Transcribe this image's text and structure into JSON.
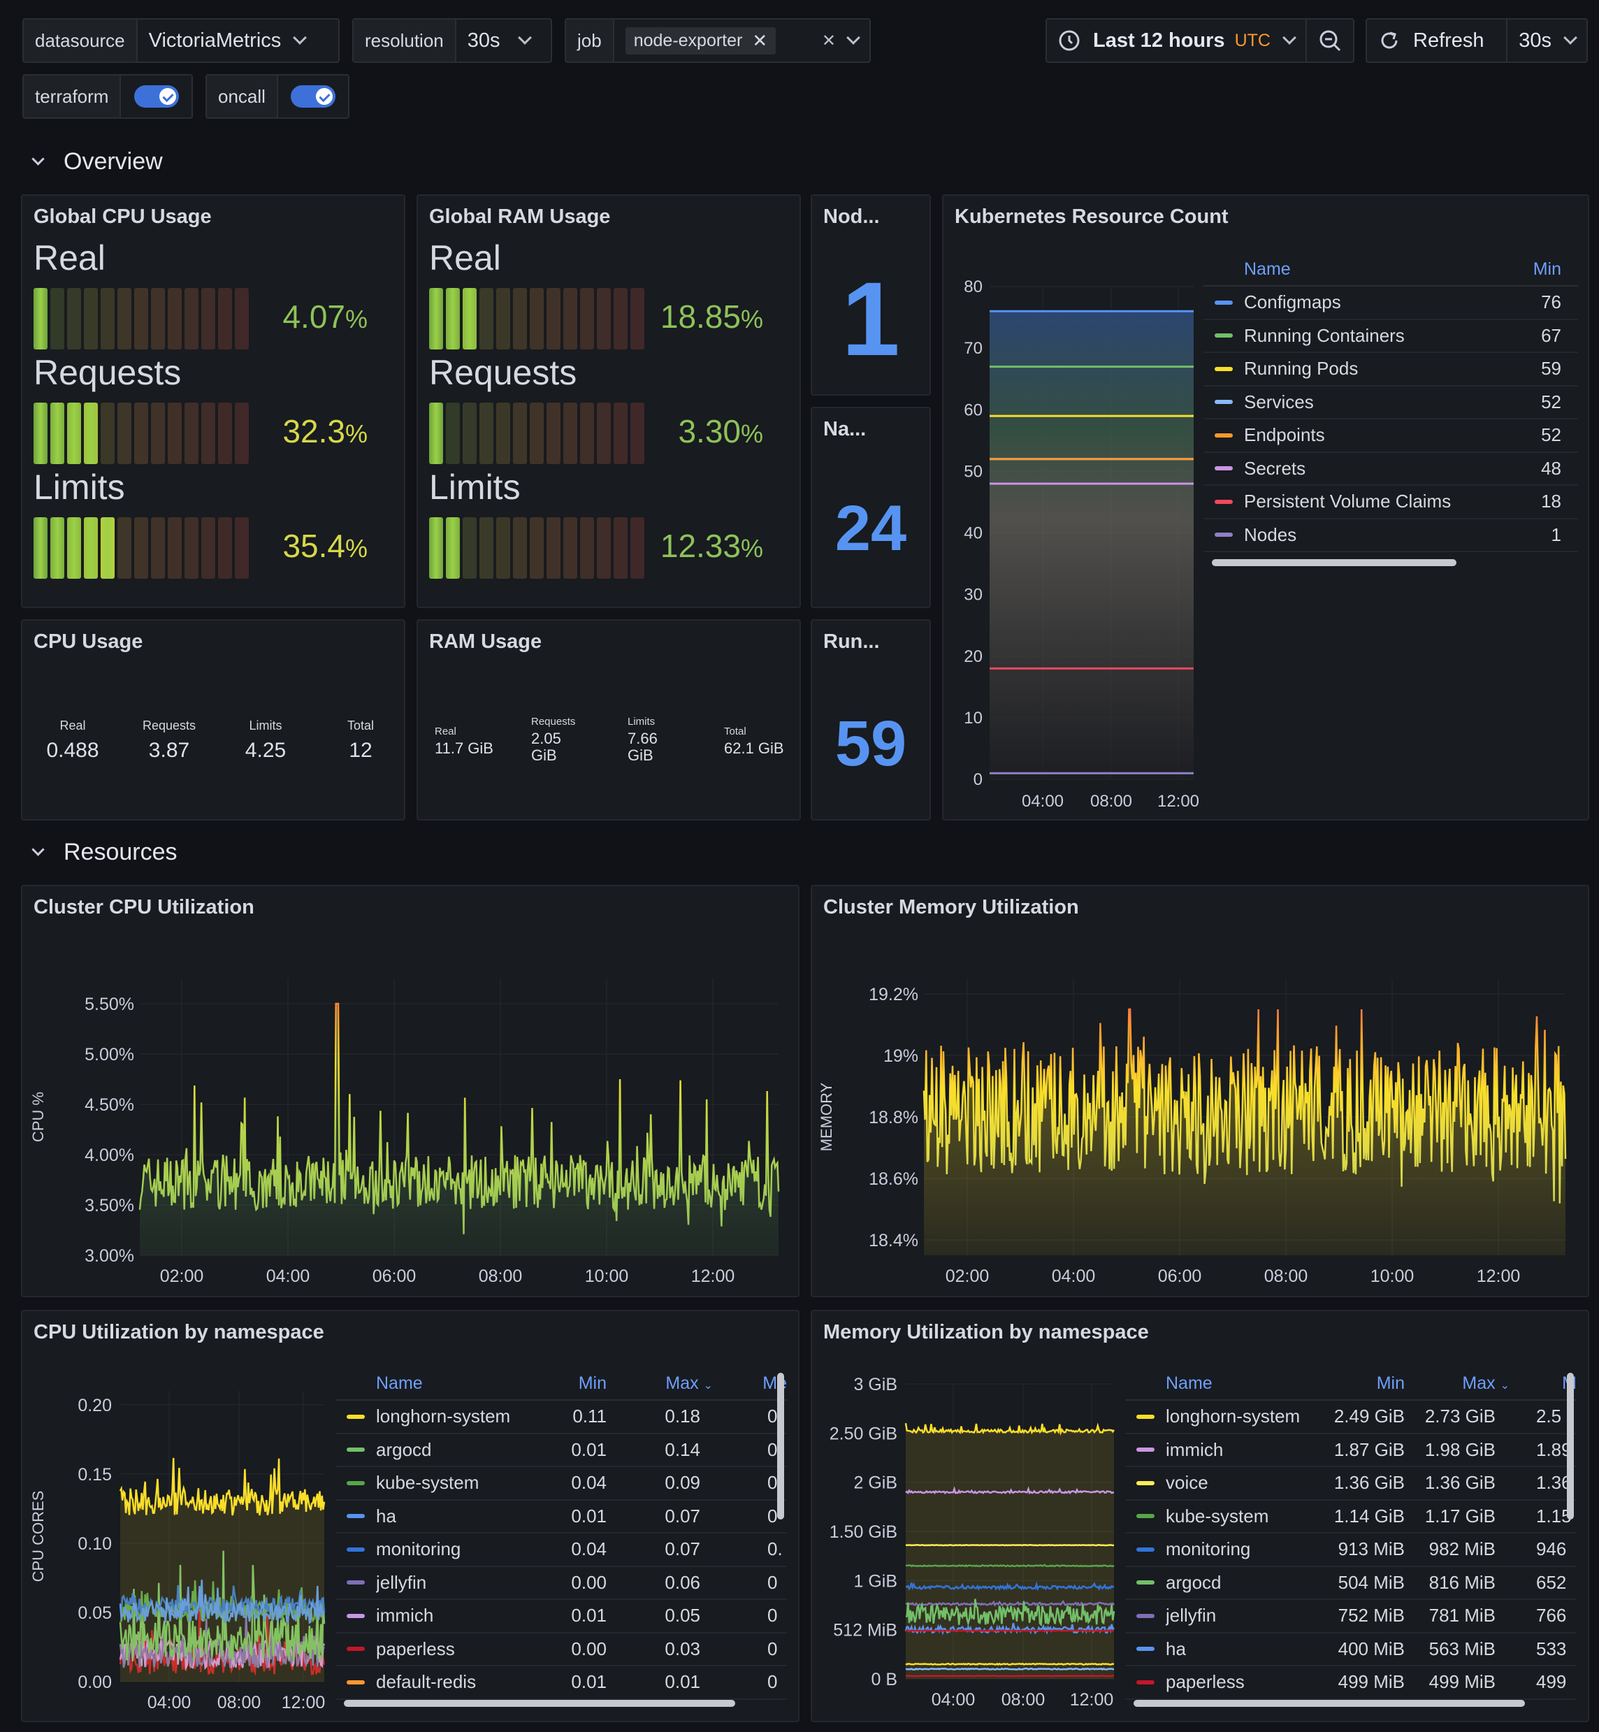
{
  "toolbar": {
    "datasource_label": "datasource",
    "datasource_value": "VictoriaMetrics",
    "resolution_label": "resolution",
    "resolution_value": "30s",
    "job_label": "job",
    "job_chip": "node-exporter",
    "time_range": "Last 12 hours",
    "timezone": "UTC",
    "refresh_label": "Refresh",
    "refresh_interval": "30s",
    "terraform_label": "terraform",
    "oncall_label": "oncall",
    "terraform_on": true,
    "oncall_on": true
  },
  "sections": {
    "overview": "Overview",
    "resources": "Resources"
  },
  "global_cpu": {
    "title": "Global CPU Usage",
    "items": [
      {
        "label": "Real",
        "value": "4.07",
        "unit": "%",
        "fraction": 0.0407
      },
      {
        "label": "Requests",
        "value": "32.3",
        "unit": "%",
        "fraction": 0.323
      },
      {
        "label": "Limits",
        "value": "35.4",
        "unit": "%",
        "fraction": 0.354
      }
    ]
  },
  "global_ram": {
    "title": "Global RAM Usage",
    "items": [
      {
        "label": "Real",
        "value": "18.85",
        "unit": "%",
        "fraction": 0.1885
      },
      {
        "label": "Requests",
        "value": "3.30",
        "unit": "%",
        "fraction": 0.033
      },
      {
        "label": "Limits",
        "value": "12.33",
        "unit": "%",
        "fraction": 0.1233
      }
    ]
  },
  "stats": {
    "nodes": {
      "title": "Nod...",
      "value": "1"
    },
    "namespaces": {
      "title": "Na...",
      "value": "24"
    },
    "running": {
      "title": "Run...",
      "value": "59"
    }
  },
  "cpu_usage": {
    "title": "CPU Usage",
    "items": [
      {
        "label": "Real",
        "value": "0.488"
      },
      {
        "label": "Requests",
        "value": "3.87"
      },
      {
        "label": "Limits",
        "value": "4.25"
      },
      {
        "label": "Total",
        "value": "12"
      }
    ]
  },
  "ram_usage": {
    "title": "RAM Usage",
    "items": [
      {
        "label": "Real",
        "value": "11.7 GiB"
      },
      {
        "label": "Requests",
        "value": "2.05 GiB"
      },
      {
        "label": "Limits",
        "value": "7.66 GiB"
      },
      {
        "label": "Total",
        "value": "62.1 GiB"
      }
    ]
  },
  "k8s_count": {
    "title": "Kubernetes Resource Count",
    "legend_headers": {
      "name": "Name",
      "min": "Min"
    },
    "rows": [
      {
        "name": "Configmaps",
        "min": "76",
        "color": "#5794f2"
      },
      {
        "name": "Running Containers",
        "min": "67",
        "color": "#73bf69"
      },
      {
        "name": "Running Pods",
        "min": "59",
        "color": "#fade2a"
      },
      {
        "name": "Services",
        "min": "52",
        "color": "#8ab8ff"
      },
      {
        "name": "Endpoints",
        "min": "52",
        "color": "#ff9830"
      },
      {
        "name": "Secrets",
        "min": "48",
        "color": "#ca95e5"
      },
      {
        "name": "Persistent Volume Claims",
        "min": "18",
        "color": "#f2495c"
      },
      {
        "name": "Nodes",
        "min": "1",
        "color": "#8f80c8"
      }
    ]
  },
  "cluster_cpu": {
    "title": "Cluster CPU Utilization"
  },
  "cluster_mem": {
    "title": "Cluster Memory Utilization"
  },
  "cpu_ns": {
    "title": "CPU Utilization by namespace",
    "headers": {
      "name": "Name",
      "min": "Min",
      "max": "Max",
      "mean": "Me"
    },
    "rows": [
      {
        "name": "longhorn-system",
        "min": "0.11",
        "max": "0.18",
        "mean": "0",
        "color": "#fade2a"
      },
      {
        "name": "argocd",
        "min": "0.01",
        "max": "0.14",
        "mean": "0",
        "color": "#73bf69"
      },
      {
        "name": "kube-system",
        "min": "0.04",
        "max": "0.09",
        "mean": "0.",
        "color": "#56a64b"
      },
      {
        "name": "ha",
        "min": "0.01",
        "max": "0.07",
        "mean": "0",
        "color": "#5794f2"
      },
      {
        "name": "monitoring",
        "min": "0.04",
        "max": "0.07",
        "mean": "0.",
        "color": "#3274d9"
      },
      {
        "name": "jellyfin",
        "min": "0.00",
        "max": "0.06",
        "mean": "0",
        "color": "#806eb7"
      },
      {
        "name": "immich",
        "min": "0.01",
        "max": "0.05",
        "mean": "0",
        "color": "#ca95e5"
      },
      {
        "name": "paperless",
        "min": "0.00",
        "max": "0.03",
        "mean": "0",
        "color": "#c4162a"
      },
      {
        "name": "default-redis",
        "min": "0.01",
        "max": "0.01",
        "mean": "0",
        "color": "#ff9830"
      }
    ]
  },
  "mem_ns": {
    "title": "Memory Utilization by namespace",
    "headers": {
      "name": "Name",
      "min": "Min",
      "max": "Max",
      "mean": "M"
    },
    "rows": [
      {
        "name": "longhorn-system",
        "min": "2.49 GiB",
        "max": "2.73 GiB",
        "mean": "2.5",
        "color": "#fade2a"
      },
      {
        "name": "immich",
        "min": "1.87 GiB",
        "max": "1.98 GiB",
        "mean": "1.89",
        "color": "#ca95e5"
      },
      {
        "name": "voice",
        "min": "1.36 GiB",
        "max": "1.36 GiB",
        "mean": "1.36",
        "color": "#ffee52"
      },
      {
        "name": "kube-system",
        "min": "1.14 GiB",
        "max": "1.17 GiB",
        "mean": "1.15",
        "color": "#56a64b"
      },
      {
        "name": "monitoring",
        "min": "913 MiB",
        "max": "982 MiB",
        "mean": "946",
        "color": "#3274d9"
      },
      {
        "name": "argocd",
        "min": "504 MiB",
        "max": "816 MiB",
        "mean": "652",
        "color": "#73bf69"
      },
      {
        "name": "jellyfin",
        "min": "752 MiB",
        "max": "781 MiB",
        "mean": "766",
        "color": "#806eb7"
      },
      {
        "name": "ha",
        "min": "400 MiB",
        "max": "563 MiB",
        "mean": "533",
        "color": "#5794f2"
      },
      {
        "name": "paperless",
        "min": "499 MiB",
        "max": "499 MiB",
        "mean": "499",
        "color": "#c4162a"
      }
    ]
  },
  "chart_data": [
    {
      "type": "area",
      "title": "Kubernetes Resource Count",
      "x_ticks": [
        "04:00",
        "08:00",
        "12:00"
      ],
      "ylim": [
        0,
        80
      ],
      "y_ticks": [
        "0",
        "10",
        "20",
        "30",
        "40",
        "50",
        "60",
        "70",
        "80"
      ],
      "series": [
        {
          "name": "Configmaps",
          "value": 76
        },
        {
          "name": "Running Containers",
          "value": 67
        },
        {
          "name": "Running Pods",
          "value": 59
        },
        {
          "name": "Services",
          "value": 52
        },
        {
          "name": "Endpoints",
          "value": 52
        },
        {
          "name": "Secrets",
          "value": 48
        },
        {
          "name": "Persistent Volume Claims",
          "value": 18
        },
        {
          "name": "Nodes",
          "value": 1
        }
      ]
    },
    {
      "type": "line",
      "title": "Cluster CPU Utilization",
      "ylabel": "CPU %",
      "x_ticks": [
        "02:00",
        "04:00",
        "06:00",
        "08:00",
        "10:00",
        "12:00"
      ],
      "y_ticks": [
        "3.00%",
        "3.50%",
        "4.00%",
        "4.50%",
        "5.00%",
        "5.50%"
      ],
      "ylim": [
        3.0,
        5.75
      ],
      "series": [
        {
          "name": "cpu",
          "baseline": 3.7,
          "min": 3.2,
          "max": 5.5,
          "peak_time": "05:00",
          "peak_value": 5.5
        }
      ]
    },
    {
      "type": "line",
      "title": "Cluster Memory Utilization",
      "ylabel": "MEMORY",
      "x_ticks": [
        "02:00",
        "04:00",
        "06:00",
        "08:00",
        "10:00",
        "12:00"
      ],
      "y_ticks": [
        "18.4%",
        "18.6%",
        "18.8%",
        "19%",
        "19.2%"
      ],
      "ylim": [
        18.35,
        19.25
      ],
      "series": [
        {
          "name": "memory",
          "baseline": 18.8,
          "min": 18.45,
          "max": 19.15,
          "peak_time": "05:00",
          "peak_value": 19.15
        }
      ]
    },
    {
      "type": "line",
      "title": "CPU Utilization by namespace",
      "ylabel": "CPU CORES",
      "x_ticks": [
        "04:00",
        "08:00",
        "12:00"
      ],
      "y_ticks": [
        "0.00",
        "0.05",
        "0.10",
        "0.15",
        "0.20"
      ],
      "ylim": [
        0,
        0.21
      ]
    },
    {
      "type": "line",
      "title": "Memory Utilization by namespace",
      "x_ticks": [
        "04:00",
        "08:00",
        "12:00"
      ],
      "y_ticks": [
        "0 B",
        "512 MiB",
        "1 GiB",
        "1.50 GiB",
        "2 GiB",
        "2.50 GiB",
        "3 GiB"
      ],
      "ylim": [
        0,
        3
      ]
    }
  ]
}
